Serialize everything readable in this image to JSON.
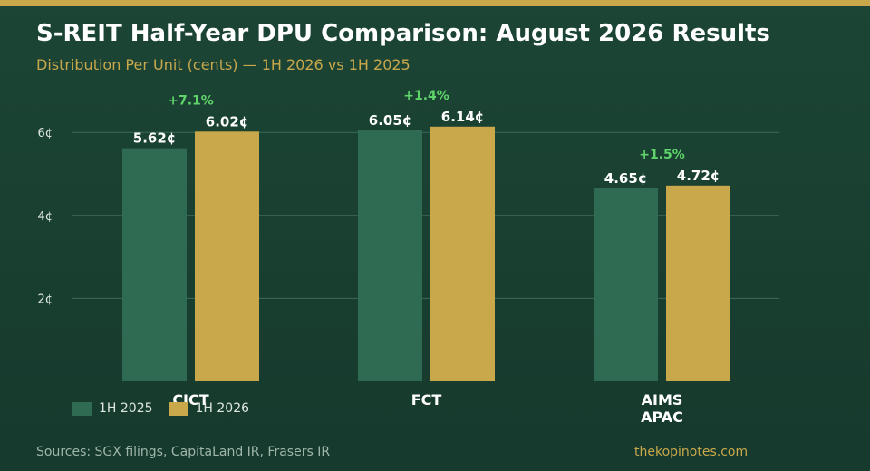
{
  "header": {
    "title": "S-REIT Half-Year DPU Comparison: August 2026 Results",
    "subtitle": "Distribution Per Unit (cents) — 1H 2026 vs 1H 2025"
  },
  "footer": {
    "sources": "Sources: SGX filings, CapitaLand IR, Frasers IR",
    "credit": "thekopinotes.com"
  },
  "colors": {
    "background": "#1a4333",
    "accent_gold": "#c9a84c",
    "series_2025": "#2e6b52",
    "series_2026": "#c9a84c",
    "change_label": "#5fd46a"
  },
  "chart_data": {
    "type": "bar",
    "categories": [
      "CICT",
      "FCT",
      "AIMS APAC"
    ],
    "category_lines": [
      [
        "CICT"
      ],
      [
        "FCT"
      ],
      [
        "AIMS",
        "APAC"
      ]
    ],
    "series": [
      {
        "name": "1H 2025",
        "values": [
          5.62,
          6.05,
          4.65
        ],
        "labels": [
          "5.62¢",
          "6.05¢",
          "4.65¢"
        ],
        "color": "#2e6b52"
      },
      {
        "name": "1H 2026",
        "values": [
          6.02,
          6.14,
          4.72
        ],
        "labels": [
          "6.02¢",
          "6.14¢",
          "4.72¢"
        ],
        "color": "#c9a84c"
      }
    ],
    "changes": [
      "+7.1%",
      "+1.4%",
      "+1.5%"
    ],
    "yticks": [
      2,
      4,
      6
    ],
    "ytick_labels": [
      "2¢",
      "4¢",
      "6¢"
    ],
    "ylim": [
      0,
      6.9
    ],
    "grid": true,
    "legend": "bottom-left"
  }
}
